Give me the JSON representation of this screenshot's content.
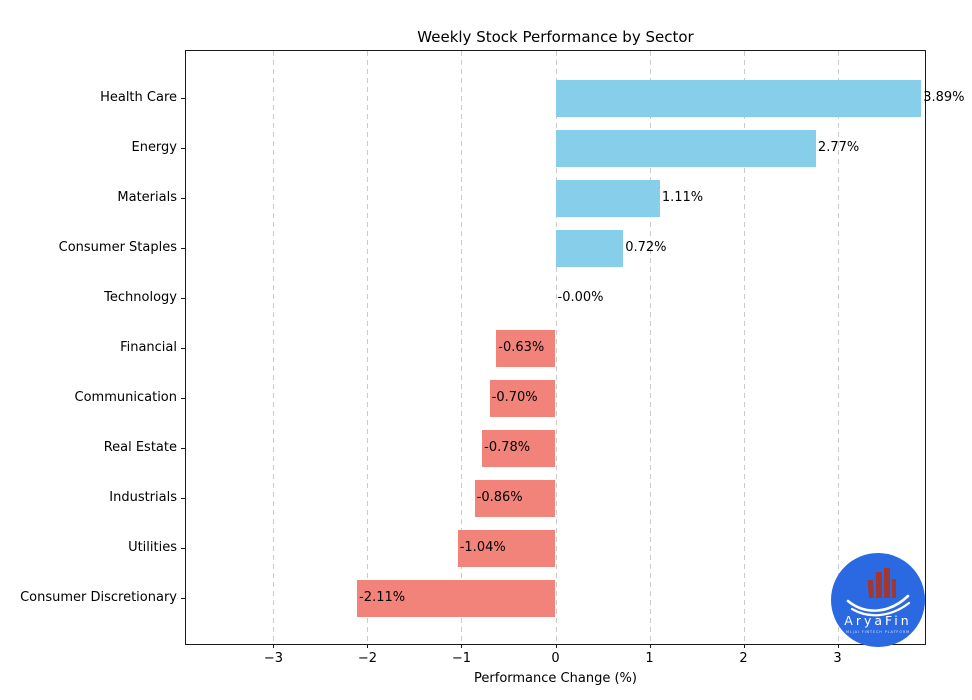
{
  "figure": {
    "title": "Weekly Stock Performance by Sector",
    "xlabel": "Performance Change (%)"
  },
  "chart_data": {
    "type": "bar",
    "orientation": "horizontal",
    "title": "Weekly Stock Performance by Sector",
    "xlabel": "Performance Change (%)",
    "ylabel": "",
    "categories": [
      "Health Care",
      "Energy",
      "Materials",
      "Consumer Staples",
      "Technology",
      "Financial",
      "Communication",
      "Real Estate",
      "Industrials",
      "Utilities",
      "Consumer Discretionary"
    ],
    "values": [
      3.89,
      2.77,
      1.11,
      0.72,
      -0.0,
      -0.63,
      -0.7,
      -0.78,
      -0.86,
      -1.04,
      -2.11
    ],
    "bar_labels": [
      "3.89%",
      "2.77%",
      "1.11%",
      "0.72%",
      "-0.00%",
      "-0.63%",
      "-0.70%",
      "-0.78%",
      "-0.86%",
      "-1.04%",
      "-2.11%"
    ],
    "xlim": [
      -3.93,
      3.93
    ],
    "xtick_values": [
      -3,
      -2,
      -1,
      0,
      1,
      2,
      3
    ],
    "xtick_labels": [
      "−3",
      "−2",
      "−1",
      "0",
      "1",
      "2",
      "3"
    ],
    "grid": "vertical-dashed",
    "legend": "none",
    "positive_color": "#87CEEB",
    "negative_color": "#F1837A"
  },
  "logo": {
    "brand": "AryaFin",
    "tagline": "ML|AI FINTECH PLATFORM",
    "circle_color": "#2A69E2",
    "building_color": "#A23631",
    "swoosh_color": "#FFFFFF",
    "tagline_color": "#D9E4FF"
  }
}
